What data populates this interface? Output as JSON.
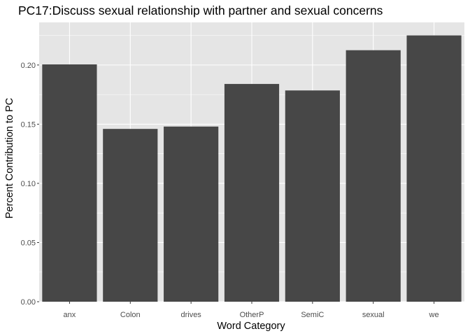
{
  "chart_data": {
    "type": "bar",
    "title": "PC17:Discuss sexual relationship with partner and sexual concerns",
    "xlabel": "Word Category",
    "ylabel": "Percent Contribution to PC",
    "categories": [
      "anx",
      "Colon",
      "drives",
      "OtherP",
      "SemiC",
      "sexual",
      "we"
    ],
    "values": [
      0.2005,
      0.146,
      0.148,
      0.184,
      0.1785,
      0.2125,
      0.225
    ],
    "ylim": [
      0,
      0.236
    ],
    "yticks": [
      0.0,
      0.05,
      0.1,
      0.15,
      0.2
    ],
    "ytick_labels": [
      "0.00",
      "0.05",
      "0.10",
      "0.15",
      "0.20"
    ],
    "grid": true,
    "legend": "none",
    "colors": {
      "bar": "#474747",
      "panel": "#e5e5e5",
      "grid_major": "#ffffff",
      "tick_label": "#4d4d4d",
      "tick_mark": "#333333"
    }
  }
}
